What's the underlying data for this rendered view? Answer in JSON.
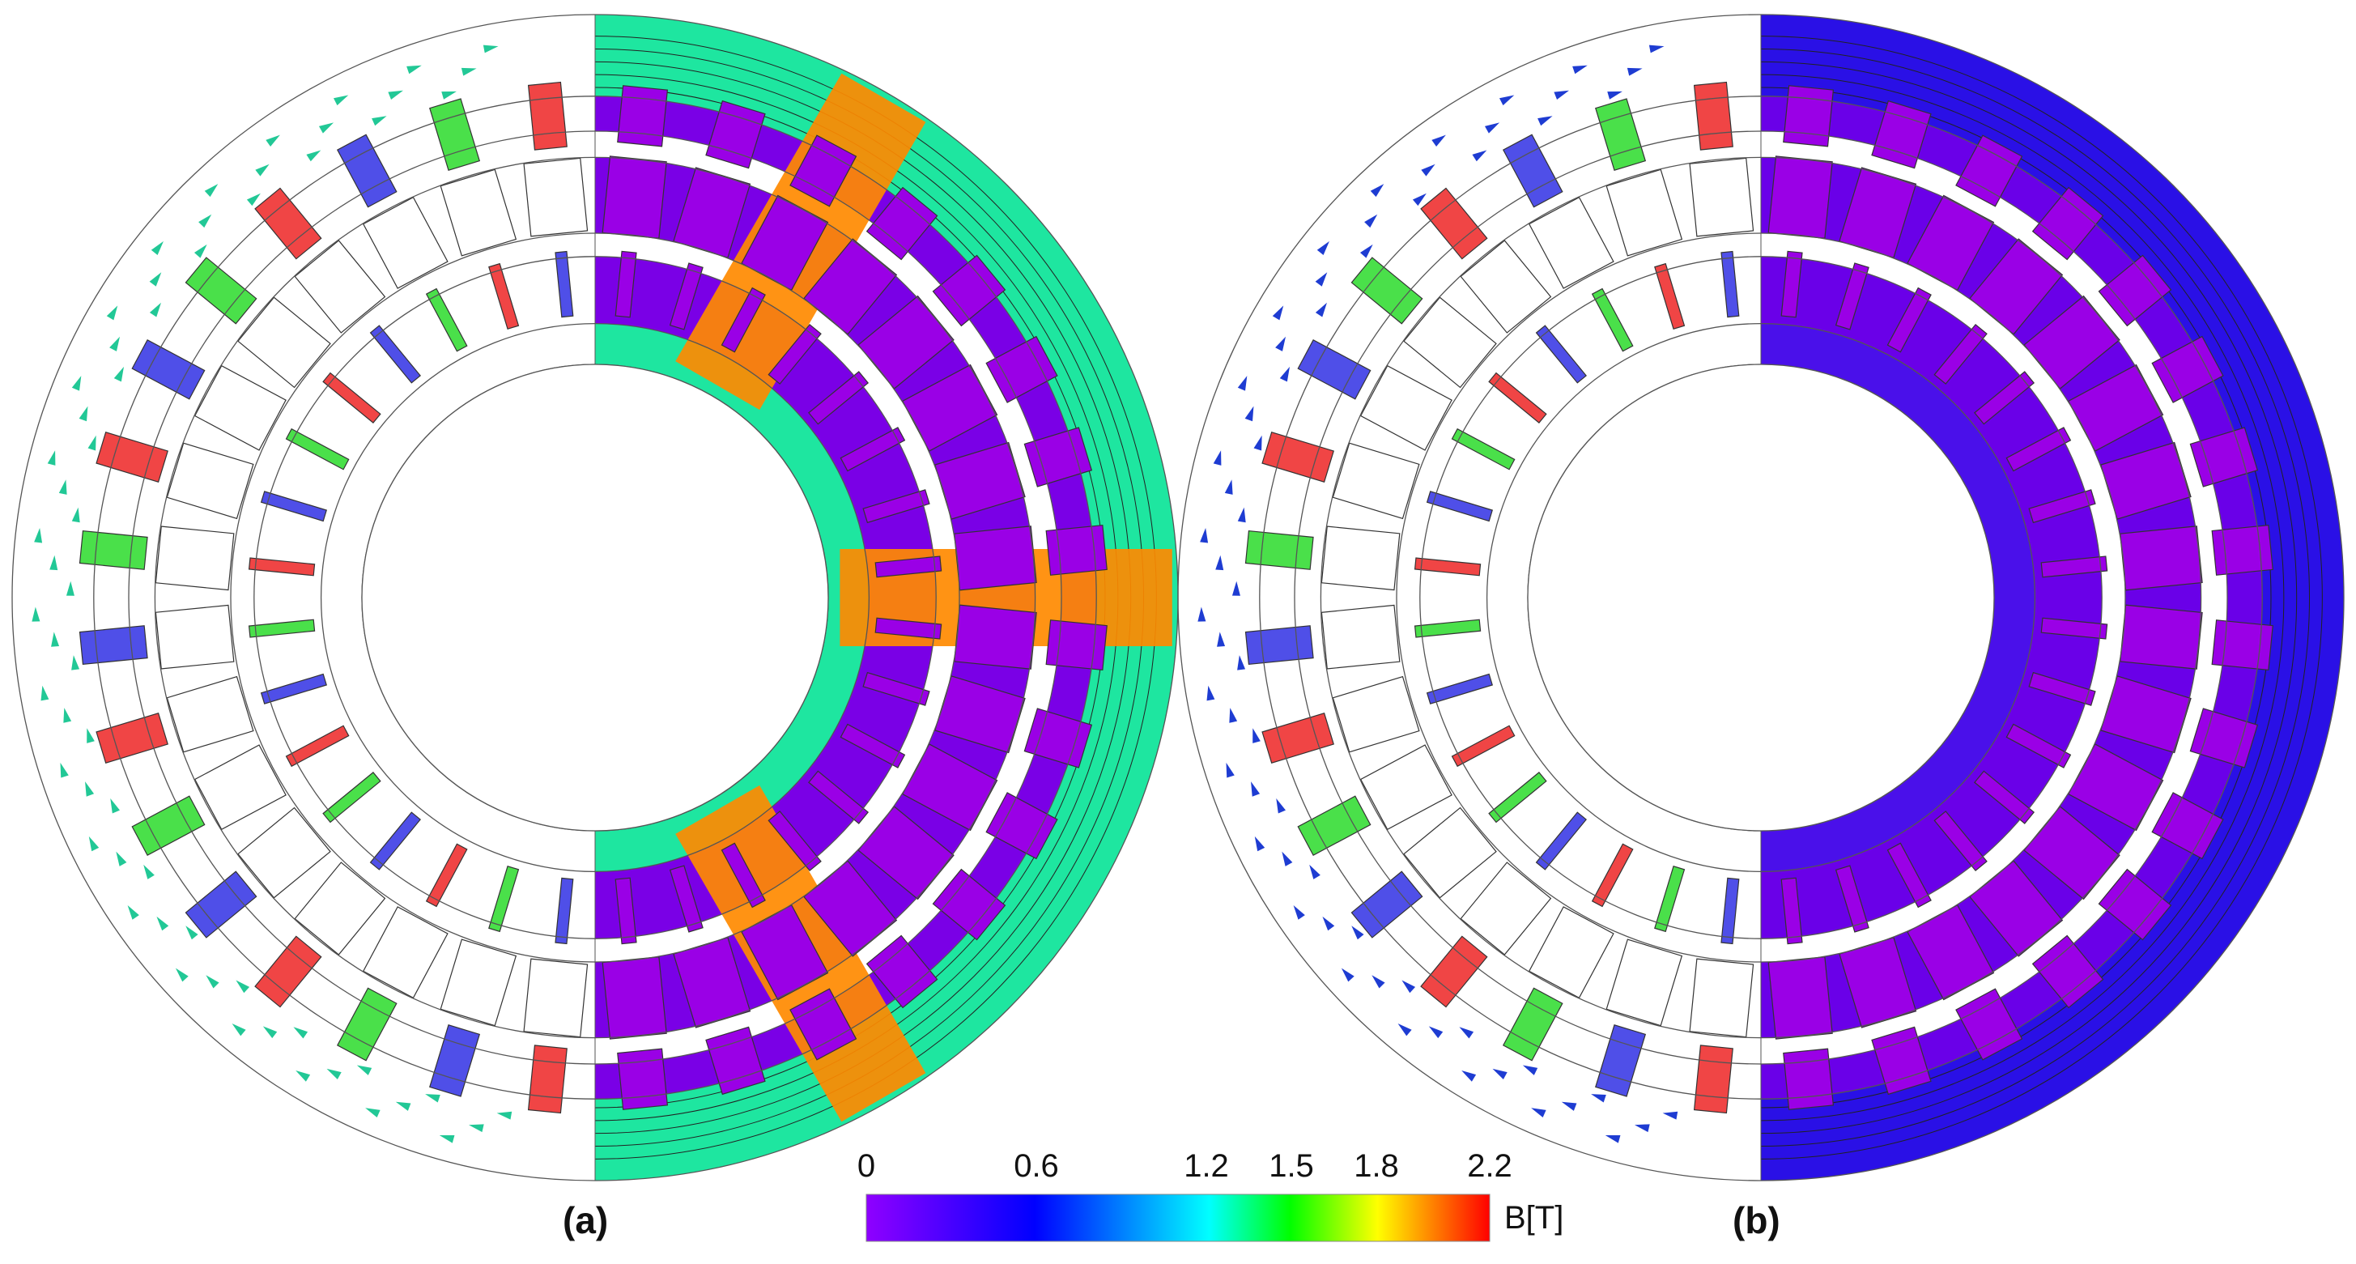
{
  "panels": [
    {
      "id": "a",
      "label": "(a)",
      "field_scale": 1.0
    },
    {
      "id": "b",
      "label": "(b)",
      "field_scale": 0.35
    }
  ],
  "colorbar": {
    "ticks": [
      "0",
      "0.6",
      "1.2",
      "1.5",
      "1.8",
      "2.2"
    ],
    "tick_values": [
      0,
      0.6,
      1.2,
      1.5,
      1.8,
      2.2
    ],
    "unit": "B[T]",
    "range": [
      0,
      2.2
    ],
    "stops": [
      "#8f00ff",
      "#0000ff",
      "#00ffff",
      "#00ff00",
      "#ffff00",
      "#ff0000"
    ]
  },
  "coil_colors": {
    "phase_a": "#f04545",
    "phase_b": "#4f4fe8",
    "phase_c": "#4ae04a",
    "magnet": "#9a00e6"
  }
}
